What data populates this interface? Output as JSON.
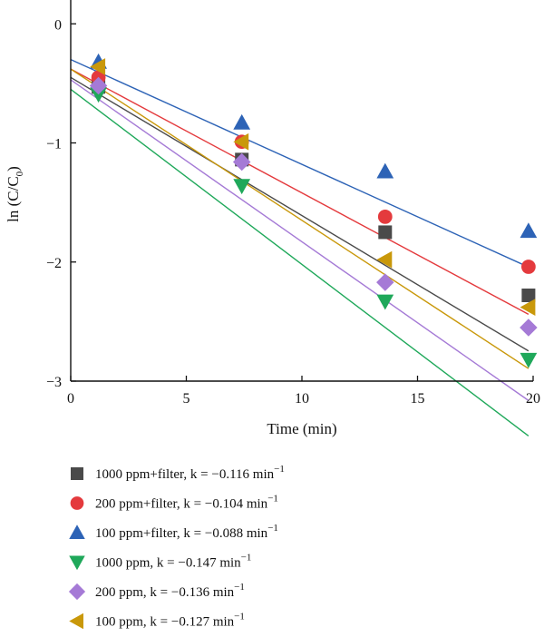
{
  "chart_data": {
    "type": "scatter",
    "xlabel": "Time (min)",
    "ylabel_parts": [
      "ln (C/C",
      "0",
      ")"
    ],
    "xlim": [
      0,
      20
    ],
    "ylim": [
      -3,
      0.2
    ],
    "xticks": [
      0,
      5,
      10,
      15,
      20
    ],
    "yticks": [
      0,
      -1,
      -2,
      -3
    ],
    "xtick_labels": [
      "0",
      "5",
      "10",
      "15",
      "20"
    ],
    "ytick_labels": [
      "0",
      "−1",
      "−2",
      "−3"
    ],
    "grid": false,
    "legend_position": "below",
    "x": [
      1.2,
      7.4,
      13.6,
      19.8
    ],
    "series": [
      {
        "name": "1000 ppm+filter, k = −0.116 min",
        "sup": "−1",
        "marker": "square",
        "color": "#4a4a4a",
        "values": [
          -0.53,
          -1.14,
          -1.75,
          -2.28
        ],
        "fit": {
          "intercept": -0.45,
          "slope": -0.116
        }
      },
      {
        "name": "200 ppm+filter, k = −0.104 min",
        "sup": "−1",
        "marker": "circle",
        "color": "#e43a3d",
        "values": [
          -0.45,
          -0.99,
          -1.62,
          -2.04
        ],
        "fit": {
          "intercept": -0.38,
          "slope": -0.104
        }
      },
      {
        "name": "100 ppm+filter, k = −0.088 min",
        "sup": "−1",
        "marker": "triangle-up",
        "color": "#2d63b6",
        "values": [
          -0.32,
          -0.83,
          -1.24,
          -1.74
        ],
        "fit": {
          "intercept": -0.3,
          "slope": -0.088
        }
      },
      {
        "name": "1000 ppm, k = −0.147 min",
        "sup": "−1",
        "marker": "triangle-down",
        "color": "#1fa85a",
        "values": [
          -0.59,
          -1.36,
          -2.33,
          -2.82
        ],
        "fit": {
          "intercept": -0.55,
          "slope": -0.147
        }
      },
      {
        "name": "200 ppm, k = −0.136 min",
        "sup": "−1",
        "marker": "diamond",
        "color": "#a57ad6",
        "values": [
          -0.52,
          -1.16,
          -2.17,
          -2.55
        ],
        "fit": {
          "intercept": -0.47,
          "slope": -0.136
        }
      },
      {
        "name": "100 ppm, k = −0.127 min",
        "sup": "−1",
        "marker": "triangle-left",
        "color": "#c9980a",
        "values": [
          -0.36,
          -0.99,
          -1.98,
          -2.38
        ],
        "fit": {
          "intercept": -0.38,
          "slope": -0.127
        }
      }
    ]
  }
}
